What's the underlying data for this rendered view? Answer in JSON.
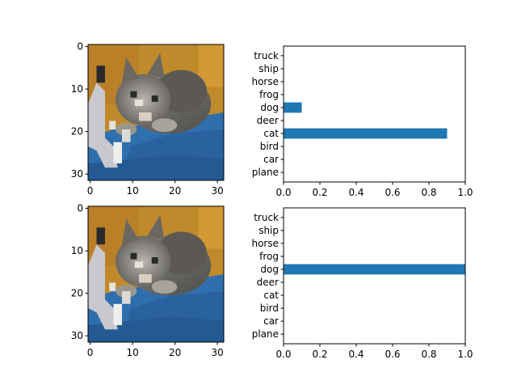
{
  "chart_data": [
    {
      "type": "heatmap",
      "description_of_content": "32x32 CIFAR-10 image of a cat (pixelated)",
      "xticks": [
        0,
        10,
        20,
        30
      ],
      "yticks": [
        0,
        10,
        20,
        30
      ],
      "xlim": [
        -0.5,
        31.5
      ],
      "ylim": [
        31.5,
        -0.5
      ]
    },
    {
      "type": "bar",
      "orientation": "horizontal",
      "categories": [
        "plane",
        "car",
        "bird",
        "cat",
        "deer",
        "dog",
        "frog",
        "horse",
        "ship",
        "truck"
      ],
      "values": [
        0,
        0,
        0,
        0.9,
        0,
        0.1,
        0,
        0,
        0,
        0
      ],
      "xlim": [
        0,
        1.0
      ],
      "xticks": [
        "0.0",
        "0.2",
        "0.4",
        "0.6",
        "0.8",
        "1.0"
      ],
      "color": "#1f77b4"
    },
    {
      "type": "heatmap",
      "description_of_content": "same 32x32 CIFAR-10 cat image",
      "xticks": [
        0,
        10,
        20,
        30
      ],
      "yticks": [
        0,
        10,
        20,
        30
      ],
      "xlim": [
        -0.5,
        31.5
      ],
      "ylim": [
        31.5,
        -0.5
      ]
    },
    {
      "type": "bar",
      "orientation": "horizontal",
      "categories": [
        "plane",
        "car",
        "bird",
        "cat",
        "deer",
        "dog",
        "frog",
        "horse",
        "ship",
        "truck"
      ],
      "values": [
        0,
        0,
        0,
        0,
        0,
        1.0,
        0,
        0,
        0,
        0
      ],
      "xlim": [
        0,
        1.0
      ],
      "xticks": [
        "0.0",
        "0.2",
        "0.4",
        "0.6",
        "0.8",
        "1.0"
      ],
      "color": "#1f77b4"
    }
  ]
}
